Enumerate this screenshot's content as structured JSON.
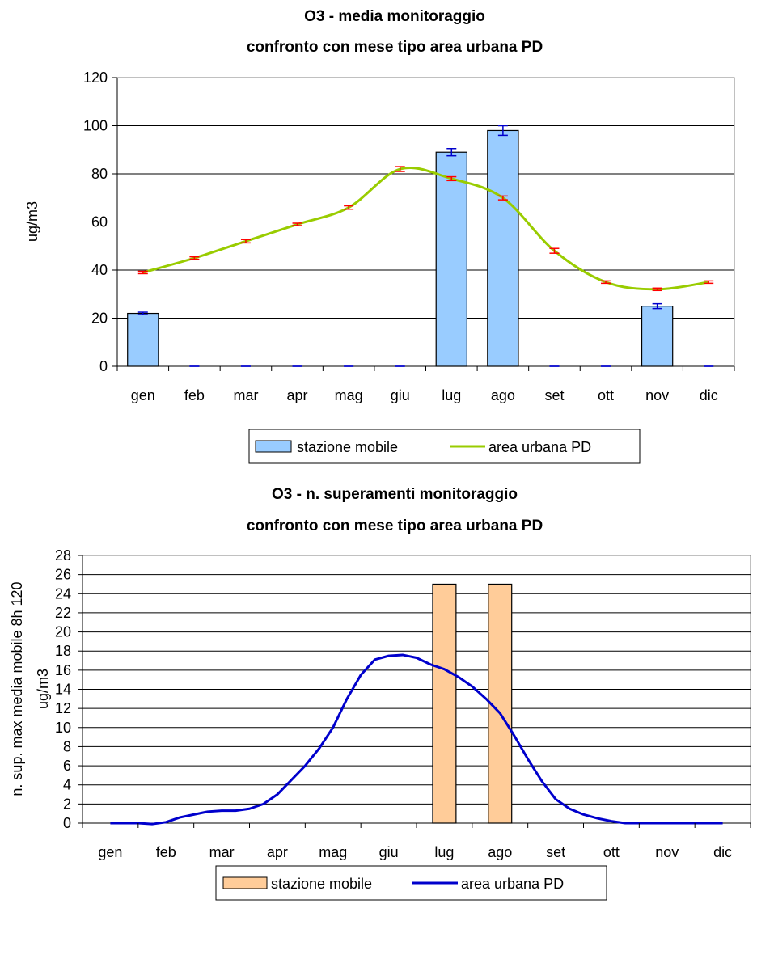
{
  "chart_data": [
    {
      "type": "bar",
      "title_line1": "O3 - media monitoraggio",
      "title_line2": "confronto con mese tipo area urbana PD",
      "ylabel": "ug/m3",
      "xlabel": "",
      "ylim": [
        0,
        120
      ],
      "yticks": [
        0,
        20,
        40,
        60,
        80,
        100,
        120
      ],
      "grid": true,
      "legend_position": "bottom",
      "categories": [
        "gen",
        "feb",
        "mar",
        "apr",
        "mag",
        "giu",
        "lug",
        "ago",
        "set",
        "ott",
        "nov",
        "dic"
      ],
      "series": [
        {
          "name": "stazione mobile",
          "kind": "bar",
          "color": "#99ccff",
          "error_color": "#0000cc",
          "values": [
            22,
            0,
            0,
            0,
            0,
            0,
            89,
            98,
            0,
            0,
            25,
            0
          ],
          "errors": [
            0.5,
            0,
            0,
            0,
            0,
            0,
            1.5,
            2,
            0,
            0,
            1,
            0
          ]
        },
        {
          "name": "area urbana PD",
          "kind": "line",
          "color": "#99cc00",
          "error_color": "#ff0000",
          "values": [
            39,
            45,
            52,
            59,
            66,
            82,
            78,
            70,
            48,
            35,
            32,
            35
          ],
          "errors": [
            0.5,
            0.5,
            0.7,
            0.5,
            0.7,
            1,
            0.8,
            0.8,
            1,
            0.5,
            0.5,
            0.5
          ]
        }
      ]
    },
    {
      "type": "bar",
      "title_line1": "O3 - n. superamenti monitoraggio",
      "title_line2": "confronto con mese tipo area urbana PD",
      "ylabel_line1": "n. sup. max media mobile 8h 120",
      "ylabel_line2": "ug/m3",
      "xlabel": "",
      "ylim": [
        0,
        28
      ],
      "yticks": [
        0,
        2,
        4,
        6,
        8,
        10,
        12,
        14,
        16,
        18,
        20,
        22,
        24,
        26,
        28
      ],
      "grid": true,
      "legend_position": "bottom",
      "categories": [
        "gen",
        "feb",
        "mar",
        "apr",
        "mag",
        "giu",
        "lug",
        "ago",
        "set",
        "ott",
        "nov",
        "dic"
      ],
      "series": [
        {
          "name": "stazione mobile",
          "kind": "bar",
          "color": "#ffcc99",
          "values": [
            0,
            0,
            0,
            0,
            0,
            0,
            25,
            25,
            0,
            0,
            0,
            0
          ]
        },
        {
          "name": "area urbana PD",
          "kind": "line",
          "color": "#0000cc",
          "x": [
            0,
            0.25,
            0.5,
            0.75,
            1,
            1.25,
            1.5,
            1.75,
            2,
            2.25,
            2.5,
            2.75,
            3,
            3.25,
            3.5,
            3.75,
            4,
            4.25,
            4.5,
            4.75,
            5,
            5.25,
            5.5,
            5.75,
            6,
            6.25,
            6.5,
            6.75,
            7,
            7.25,
            7.5,
            7.75,
            8,
            8.25,
            8.5,
            8.75,
            9,
            9.25,
            9.5,
            9.75,
            10,
            10.25,
            10.5,
            10.75,
            11
          ],
          "values": [
            0,
            0,
            0,
            -0.1,
            0.1,
            0.6,
            0.9,
            1.2,
            1.3,
            1.3,
            1.5,
            2.0,
            3.0,
            4.5,
            6.0,
            7.8,
            10.0,
            13.0,
            15.5,
            17.1,
            17.5,
            17.6,
            17.3,
            16.6,
            16.1,
            15.3,
            14.3,
            13.0,
            11.5,
            9.2,
            6.7,
            4.4,
            2.5,
            1.5,
            0.9,
            0.5,
            0.2,
            0,
            0,
            0,
            0,
            0,
            0,
            0,
            0
          ]
        }
      ]
    }
  ]
}
